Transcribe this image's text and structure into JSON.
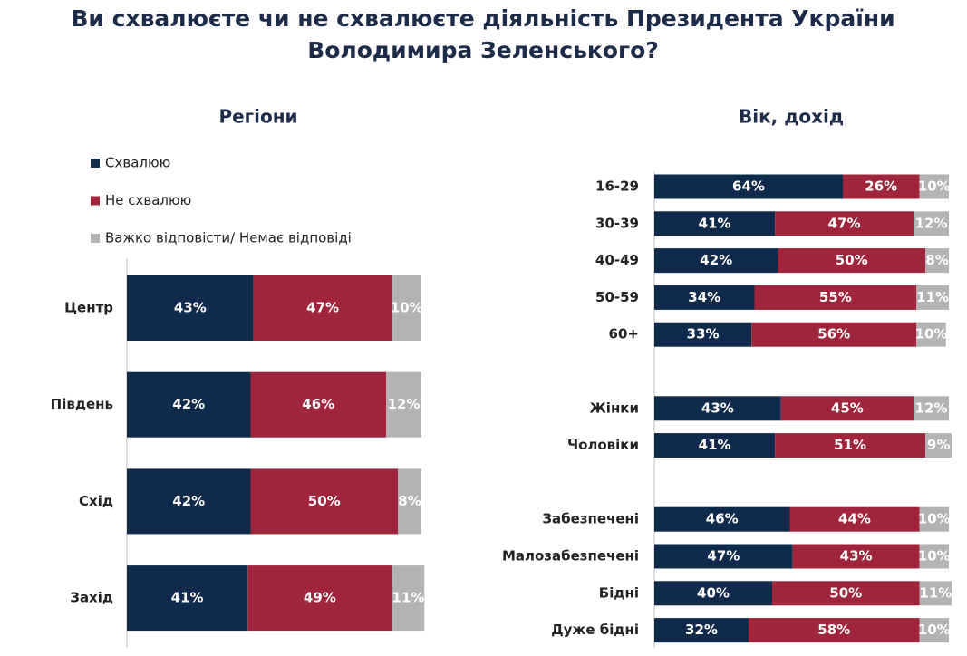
{
  "title": [
    "Ви схвалюєте чи не схвалюєте діяльність Президента України",
    "Володимира Зеленського?"
  ],
  "chart_data": [
    {
      "type": "stacked_bar_horizontal",
      "title": "Регіони",
      "xlim": [
        0,
        100
      ],
      "categories": [
        "Центр",
        "Південь",
        "Схід",
        "Захід"
      ],
      "series": [
        {
          "name": "Схвалюю",
          "color": "#0f2a4a",
          "values": [
            43,
            42,
            42,
            41
          ],
          "value_labels": [
            "43%",
            "42%",
            "42%",
            "41%"
          ]
        },
        {
          "name": "Не схвалюю",
          "color": "#a0243a",
          "values": [
            47,
            46,
            50,
            49
          ],
          "value_labels": [
            "47%",
            "46%",
            "50%",
            "49%"
          ]
        },
        {
          "name": "Важко відповісти/ Немає відповіді",
          "color": "#b3b3b3",
          "values": [
            10,
            12,
            8,
            11
          ],
          "value_labels": [
            "10%",
            "12%",
            "8%",
            "11%"
          ]
        }
      ]
    },
    {
      "type": "stacked_bar_horizontal",
      "title": "Вік, дохід",
      "xlim": [
        0,
        100
      ],
      "categories": [
        "16-29",
        "30-39",
        "40-49",
        "50-59",
        "60+",
        null,
        "Жінки",
        "Чоловіки",
        null,
        "Забезпечені",
        "Малозабезпечені",
        "Бідні",
        "Дуже бідні"
      ],
      "series": [
        {
          "color": "#0f2a4a",
          "values": [
            64,
            41,
            42,
            34,
            33,
            null,
            43,
            41,
            null,
            46,
            47,
            40,
            32
          ],
          "value_labels": [
            "64%",
            "41%",
            "42%",
            "34%",
            "33%",
            null,
            "43%",
            "41%",
            null,
            "46%",
            "47%",
            "40%",
            "32%"
          ]
        },
        {
          "color": "#a0243a",
          "values": [
            26,
            47,
            50,
            55,
            56,
            null,
            45,
            51,
            null,
            44,
            43,
            50,
            58
          ],
          "value_labels": [
            "26%",
            "47%",
            "50%",
            "55%",
            "56%",
            null,
            "45%",
            "51%",
            null,
            "44%",
            "43%",
            "50%",
            "58%"
          ]
        },
        {
          "color": "#b3b3b3",
          "values": [
            10,
            12,
            8,
            11,
            10,
            null,
            12,
            9,
            null,
            10,
            10,
            11,
            10
          ],
          "value_labels": [
            "10%",
            "12%",
            "8%",
            "11%",
            "10%",
            null,
            "12%",
            "9%",
            null,
            "10%",
            "10%",
            "11%",
            "10%"
          ]
        }
      ]
    }
  ]
}
